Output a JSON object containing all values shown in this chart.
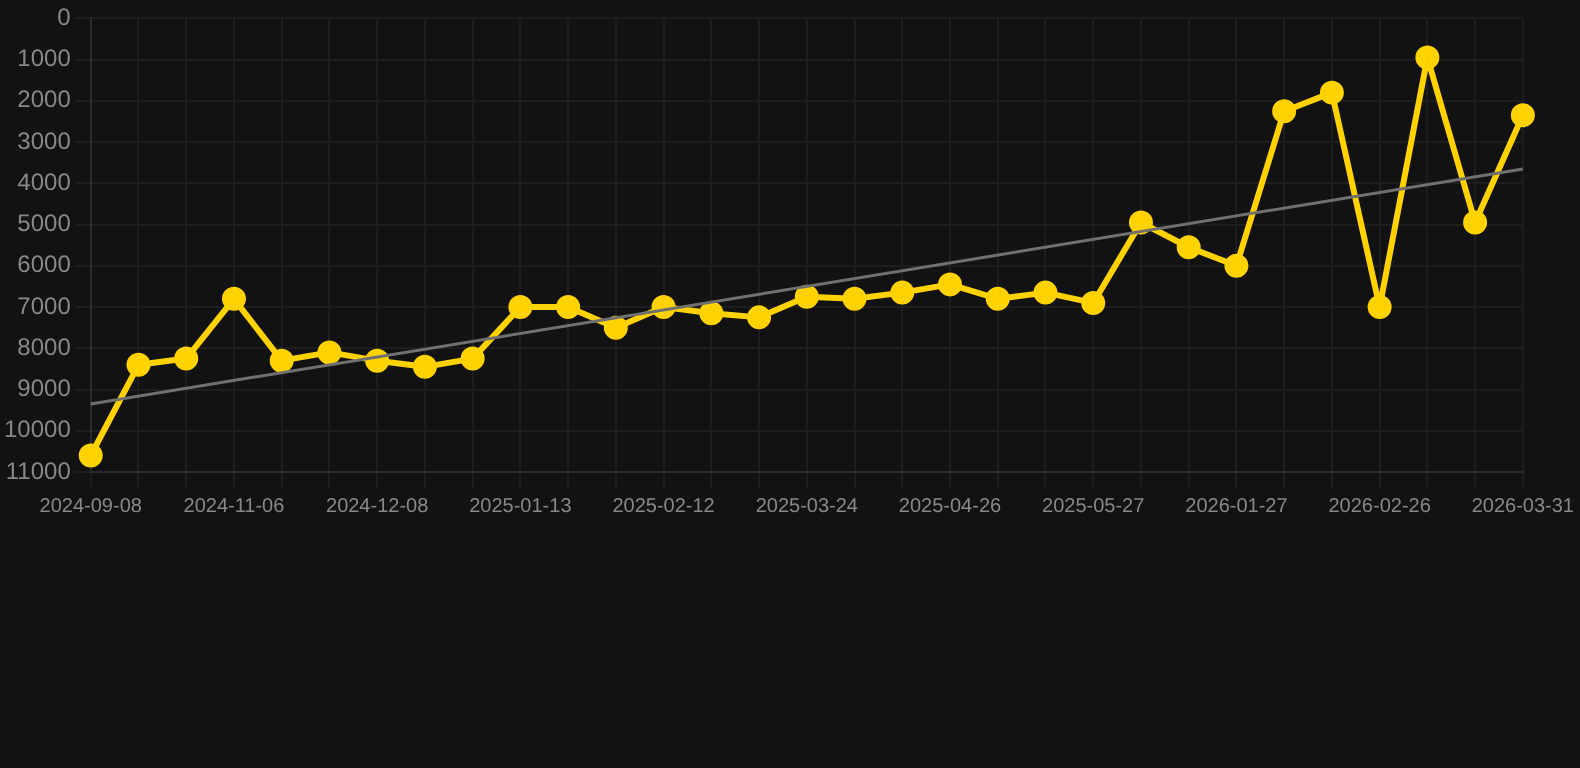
{
  "chart_data": {
    "type": "line",
    "categories": [
      "2024-09-08",
      null,
      null,
      "2024-11-06",
      null,
      null,
      "2024-12-08",
      null,
      null,
      "2025-01-13",
      null,
      null,
      "2025-02-12",
      null,
      null,
      "2025-03-24",
      null,
      null,
      "2025-04-26",
      null,
      null,
      "2025-05-27",
      null,
      null,
      "2026-01-27",
      null,
      null,
      "2026-02-26",
      null,
      null,
      "2026-03-31"
    ],
    "series": [
      {
        "color": "#ffd200",
        "marker": "circle",
        "values": [
          10600,
          8400,
          8250,
          6800,
          8300,
          8100,
          8300,
          8450,
          8250,
          7000,
          7000,
          7500,
          7000,
          7150,
          7250,
          6750,
          6800,
          6650,
          6450,
          6800,
          6650,
          6900,
          4950,
          5550,
          6000,
          2250,
          1800,
          7000,
          950,
          4950,
          2350
        ]
      },
      {
        "type": "line",
        "color": "#707070",
        "marker": "none",
        "values": [
          9350,
          null,
          null,
          null,
          null,
          null,
          null,
          null,
          null,
          null,
          null,
          null,
          null,
          null,
          null,
          null,
          null,
          null,
          null,
          null,
          null,
          null,
          null,
          null,
          null,
          null,
          null,
          null,
          null,
          null,
          3650
        ]
      }
    ],
    "ylim": [
      11000,
      0
    ],
    "yticks": [
      0,
      1000,
      2000,
      3000,
      4000,
      5000,
      6000,
      7000,
      8000,
      9000,
      10000,
      11000
    ],
    "grid": true,
    "legend": false
  }
}
